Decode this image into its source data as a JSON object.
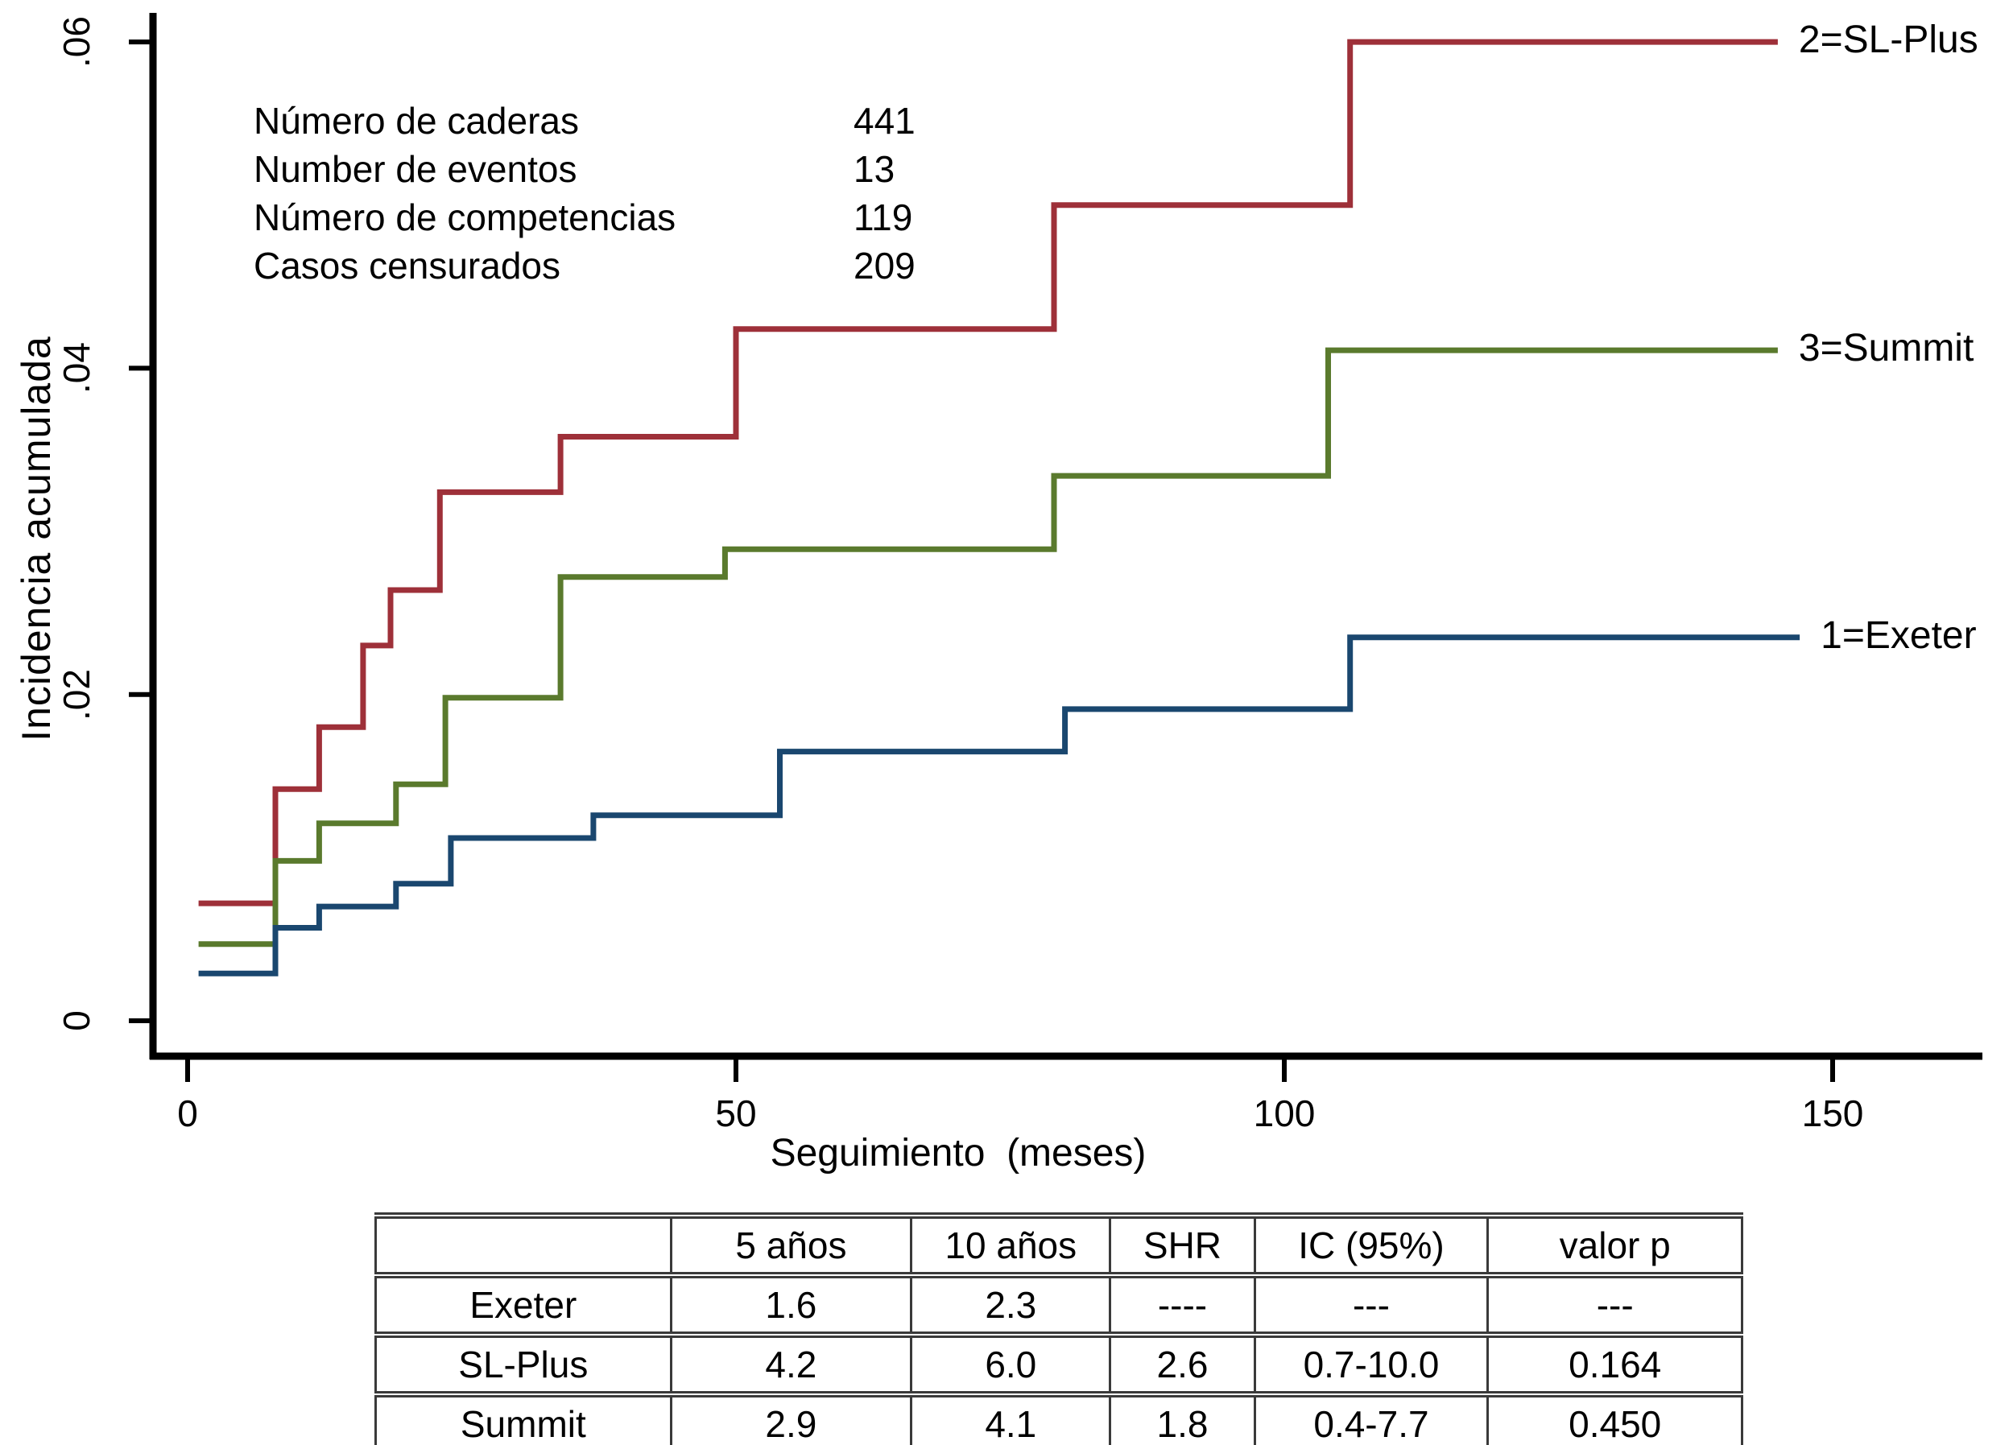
{
  "figure": {
    "y_axis": {
      "label": "Incidencia acumulada",
      "tick_labels": [
        "0",
        ".02",
        ".04",
        ".06"
      ],
      "tick_values": [
        0,
        0.02,
        0.04,
        0.06
      ]
    },
    "x_axis": {
      "label": "Seguimiento  (meses)",
      "tick_labels": [
        "0",
        "50",
        "100",
        "150"
      ],
      "tick_values": [
        0,
        50,
        100,
        150
      ]
    }
  },
  "annotation": {
    "rows": [
      {
        "label": "Número de caderas",
        "value": "441"
      },
      {
        "label": "Number de eventos",
        "value": "13"
      },
      {
        "label": "Número de competencias",
        "value": "119"
      },
      {
        "label": "Casos censurados",
        "value": "209"
      }
    ]
  },
  "chart_data": {
    "type": "line",
    "subtype": "step-cumulative-incidence",
    "title": "",
    "xlabel": "Seguimiento (meses)",
    "ylabel": "Incidencia acumulada",
    "xlim": [
      0,
      164
    ],
    "ylim": [
      0,
      0.0615
    ],
    "grid": false,
    "legend_position": "right-of-curve-ends",
    "series": [
      {
        "name": "SL-Plus",
        "legend_label": "2=SL-Plus",
        "color": "#9e3039",
        "end_x": 145,
        "step_points": [
          [
            1,
            0.0072
          ],
          [
            8,
            0.0142
          ],
          [
            12,
            0.018
          ],
          [
            16,
            0.023
          ],
          [
            18.5,
            0.0264
          ],
          [
            23,
            0.0324
          ],
          [
            34,
            0.0358
          ],
          [
            50,
            0.0424
          ],
          [
            79,
            0.05
          ],
          [
            106,
            0.06
          ]
        ]
      },
      {
        "name": "Summit",
        "legend_label": "3=Summit",
        "color": "#5a7a2d",
        "end_x": 145,
        "step_points": [
          [
            1,
            0.0047
          ],
          [
            8,
            0.0098
          ],
          [
            12,
            0.0121
          ],
          [
            19,
            0.0145
          ],
          [
            23.5,
            0.0198
          ],
          [
            34,
            0.0272
          ],
          [
            49,
            0.0289
          ],
          [
            79,
            0.0334
          ],
          [
            104,
            0.0411
          ]
        ]
      },
      {
        "name": "Exeter",
        "legend_label": "1=Exeter",
        "color": "#1a476f",
        "end_x": 147,
        "step_points": [
          [
            1,
            0.0029
          ],
          [
            8,
            0.0057
          ],
          [
            12,
            0.007
          ],
          [
            19,
            0.0084
          ],
          [
            24,
            0.0112
          ],
          [
            37,
            0.0126
          ],
          [
            54,
            0.0165
          ],
          [
            80,
            0.0191
          ],
          [
            106,
            0.0235
          ]
        ]
      }
    ]
  },
  "stats_table": {
    "headers": [
      "",
      "5 años",
      "10 años",
      "SHR",
      "IC (95%)",
      "valor p"
    ],
    "rows": [
      {
        "label": "Exeter",
        "cells": [
          "1.6",
          "2.3",
          "----",
          "---",
          "---"
        ]
      },
      {
        "label": "SL-Plus",
        "cells": [
          "4.2",
          "6.0",
          "2.6",
          "0.7-10.0",
          "0.164"
        ]
      },
      {
        "label": "Summit",
        "cells": [
          "2.9",
          "4.1",
          "1.8",
          "0.4-7.7",
          "0.450"
        ]
      }
    ]
  }
}
